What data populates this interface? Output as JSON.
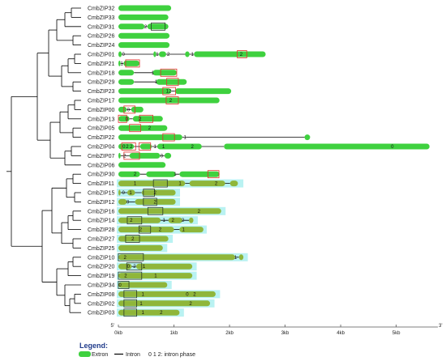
{
  "colors": {
    "exon": "#3fd13f",
    "exon_alt": "#8fb63a",
    "highlight": "#b9f2f2",
    "intron": "#000000",
    "box": "#e0302a",
    "box_alt": "#2a3a2a",
    "tree": "#000000"
  },
  "genes": [
    {
      "name": "CmbZIP32",
      "exons": [
        [
          0,
          950
        ]
      ],
      "hl": null,
      "boxes": [],
      "phases": []
    },
    {
      "name": "CmbZIP33",
      "exons": [
        [
          0,
          900
        ]
      ],
      "hl": null,
      "boxes": [],
      "phases": []
    },
    {
      "name": "CmbZIP31",
      "exons": [
        [
          0,
          470
        ],
        [
          520,
          900
        ]
      ],
      "hl": null,
      "boxes": [
        [
          590,
          840,
          "dark"
        ]
      ],
      "phases": [
        [
          490,
          "2"
        ]
      ]
    },
    {
      "name": "CmbZIP26",
      "exons": [
        [
          0,
          920
        ]
      ],
      "hl": null,
      "boxes": [],
      "phases": []
    },
    {
      "name": "CmbZIP24",
      "exons": [
        [
          0,
          920
        ]
      ],
      "hl": null,
      "boxes": [],
      "phases": []
    },
    {
      "name": "CmbZIP01",
      "exons": [
        [
          0,
          60
        ],
        [
          630,
          680
        ],
        [
          730,
          860
        ],
        [
          1200,
          1280
        ],
        [
          1360,
          2650
        ]
      ],
      "hl": null,
      "boxes": [
        [
          2140,
          2310,
          "red"
        ]
      ],
      "phases": [
        [
          90,
          "0"
        ],
        [
          700,
          "1"
        ],
        [
          900,
          "2"
        ],
        [
          1330,
          "1"
        ],
        [
          2210,
          "2"
        ]
      ]
    },
    {
      "name": "CmbZIP21",
      "exons": [
        [
          0,
          40
        ],
        [
          90,
          380
        ]
      ],
      "hl": null,
      "boxes": [
        [
          130,
          380,
          "red"
        ]
      ],
      "phases": [
        [
          60,
          "1"
        ]
      ]
    },
    {
      "name": "CmbZIP18",
      "exons": [
        [
          0,
          280
        ],
        [
          620,
          1050
        ]
      ],
      "hl": null,
      "boxes": [
        [
          760,
          1050,
          "red"
        ]
      ],
      "phases": [
        [
          620,
          "1"
        ]
      ]
    },
    {
      "name": "CmbZIP29",
      "exons": [
        [
          0,
          280
        ],
        [
          680,
          1230
        ]
      ],
      "hl": null,
      "boxes": [
        [
          870,
          1080,
          "red"
        ]
      ],
      "phases": [
        [
          680,
          "1"
        ]
      ]
    },
    {
      "name": "CmbZIP23",
      "exons": [
        [
          0,
          950
        ],
        [
          1020,
          2030
        ]
      ],
      "hl": null,
      "boxes": [
        [
          800,
          1030,
          "red"
        ]
      ],
      "phases": [
        [
          880,
          "1"
        ],
        [
          930,
          "2"
        ]
      ]
    },
    {
      "name": "CmbZIP17",
      "exons": [
        [
          0,
          1820
        ]
      ],
      "hl": null,
      "boxes": [
        [
          860,
          1080,
          "red"
        ]
      ],
      "phases": [
        [
          940,
          "2"
        ]
      ]
    },
    {
      "name": "CmbZIP00",
      "exons": [
        [
          0,
          150
        ],
        [
          230,
          450
        ]
      ],
      "hl": null,
      "boxes": [
        [
          100,
          300,
          "red"
        ]
      ],
      "phases": [
        [
          180,
          "0"
        ]
      ]
    },
    {
      "name": "CmbZIP13",
      "exons": [
        [
          0,
          200
        ],
        [
          260,
          800
        ]
      ],
      "hl": null,
      "boxes": [
        [
          0,
          150,
          "red"
        ],
        [
          380,
          620,
          "red"
        ]
      ],
      "phases": [
        [
          150,
          "0"
        ],
        [
          390,
          "2"
        ]
      ]
    },
    {
      "name": "CmbZIP05",
      "exons": [
        [
          0,
          880
        ]
      ],
      "hl": null,
      "boxes": [
        [
          200,
          400,
          "red"
        ]
      ],
      "phases": [
        [
          560,
          "2"
        ]
      ]
    },
    {
      "name": "CmbZIP22",
      "exons": [
        [
          0,
          1150
        ],
        [
          3350,
          3450
        ]
      ],
      "hl": null,
      "boxes": [
        [
          800,
          1010,
          "red"
        ]
      ],
      "phases": [
        [
          1200,
          "1"
        ]
      ]
    },
    {
      "name": "CmbZIP04",
      "exons": [
        [
          0,
          280
        ],
        [
          390,
          600
        ],
        [
          700,
          1500
        ],
        [
          1900,
          5600
        ]
      ],
      "hl": null,
      "boxes": [
        [
          60,
          310,
          "red"
        ],
        [
          370,
          580,
          "red"
        ]
      ],
      "phases": [
        [
          100,
          "0"
        ],
        [
          160,
          "2"
        ],
        [
          230,
          "2"
        ],
        [
          660,
          "1"
        ],
        [
          810,
          "1"
        ],
        [
          1330,
          "2"
        ],
        [
          4930,
          "0"
        ]
      ]
    },
    {
      "name": "CmbZIP07",
      "exons": [
        [
          0,
          40
        ],
        [
          200,
          750
        ],
        [
          830,
          950
        ]
      ],
      "hl": null,
      "boxes": [
        [
          100,
          380,
          "red"
        ]
      ],
      "phases": [
        [
          110,
          "2"
        ],
        [
          780,
          "0"
        ]
      ]
    },
    {
      "name": "CmbZIP06",
      "exons": [
        [
          0,
          850
        ]
      ],
      "hl": null,
      "boxes": [],
      "phases": []
    },
    {
      "name": "CmbZIP30",
      "exons": [
        [
          0,
          390
        ],
        [
          500,
          1030
        ],
        [
          1100,
          1820
        ]
      ],
      "hl": null,
      "boxes": [
        [
          1610,
          1810,
          "red"
        ]
      ],
      "phases": [
        [
          300,
          "2"
        ],
        [
          1020,
          "1"
        ]
      ]
    },
    {
      "name": "CmbZIP11",
      "exons": [
        [
          0,
          1200
        ],
        [
          1280,
          1920
        ],
        [
          2010,
          2150
        ]
      ],
      "hl": [
        0,
        2220
      ],
      "boxes": [
        [
          630,
          880,
          "dark"
        ]
      ],
      "phases": [
        [
          300,
          "1"
        ],
        [
          1110,
          "1"
        ],
        [
          1760,
          "2"
        ]
      ]
    },
    {
      "name": "CmbZIP15",
      "exons": [
        [
          0,
          40
        ],
        [
          160,
          300
        ],
        [
          420,
          1030
        ]
      ],
      "hl": [
        0,
        1080
      ],
      "boxes": [
        [
          450,
          650,
          "dark"
        ]
      ],
      "phases": [
        [
          90,
          "0"
        ],
        [
          220,
          "1"
        ],
        [
          660,
          "2"
        ]
      ]
    },
    {
      "name": "CmbZIP12",
      "exons": [
        [
          0,
          150
        ],
        [
          300,
          1030
        ]
      ],
      "hl": [
        0,
        1080
      ],
      "boxes": [
        [
          450,
          690,
          "dark"
        ]
      ],
      "phases": [
        [
          170,
          "0"
        ],
        [
          660,
          "2"
        ]
      ]
    },
    {
      "name": "CmbZIP16",
      "exons": [
        [
          0,
          1850
        ]
      ],
      "hl": [
        0,
        1900
      ],
      "boxes": [
        [
          530,
          800,
          "dark"
        ]
      ],
      "phases": [
        [
          1450,
          "2"
        ]
      ]
    },
    {
      "name": "CmbZIP14",
      "exons": [
        [
          0,
          760
        ],
        [
          900,
          1150
        ],
        [
          1270,
          1350
        ]
      ],
      "hl": [
        0,
        1400
      ],
      "boxes": [
        [
          160,
          420,
          "dark"
        ]
      ],
      "phases": [
        [
          230,
          "2"
        ],
        [
          820,
          "1"
        ],
        [
          980,
          "2"
        ],
        [
          1160,
          "2"
        ]
      ]
    },
    {
      "name": "CmbZIP28",
      "exons": [
        [
          0,
          1000
        ],
        [
          1100,
          1530
        ]
      ],
      "hl": [
        0,
        1560
      ],
      "boxes": [
        [
          370,
          580,
          "dark"
        ]
      ],
      "phases": [
        [
          400,
          "2"
        ],
        [
          750,
          "2"
        ],
        [
          1170,
          "1"
        ]
      ]
    },
    {
      "name": "CmbZIP27",
      "exons": [
        [
          0,
          900
        ]
      ],
      "hl": [
        0,
        950
      ],
      "boxes": [
        [
          130,
          380,
          "dark"
        ]
      ],
      "phases": [
        [
          260,
          "2"
        ]
      ]
    },
    {
      "name": "CmbZIP25",
      "exons": [
        [
          0,
          800
        ]
      ],
      "hl": [
        0,
        850
      ],
      "boxes": [],
      "phases": []
    },
    {
      "name": "CmbZIP10",
      "exons": [
        [
          0,
          2100
        ],
        [
          2170,
          2250
        ]
      ],
      "hl": [
        0,
        2300
      ],
      "boxes": [
        [
          0,
          450,
          "dark"
        ]
      ],
      "phases": [
        [
          120,
          "2"
        ],
        [
          2110,
          "1"
        ]
      ]
    },
    {
      "name": "CmbZIP20",
      "exons": [
        [
          0,
          240
        ],
        [
          320,
          1330
        ]
      ],
      "hl": [
        0,
        1380
      ],
      "boxes": [
        [
          150,
          420,
          "dark"
        ]
      ],
      "phases": [
        [
          180,
          "0"
        ],
        [
          290,
          "2"
        ],
        [
          460,
          "1"
        ]
      ]
    },
    {
      "name": "CmbZIP19",
      "exons": [
        [
          0,
          1330
        ]
      ],
      "hl": [
        0,
        1380
      ],
      "boxes": [
        [
          0,
          420,
          "dark"
        ]
      ],
      "phases": [
        [
          130,
          "2"
        ],
        [
          670,
          "1"
        ]
      ]
    },
    {
      "name": "CmbZIP34",
      "exons": [
        [
          0,
          880
        ]
      ],
      "hl": [
        0,
        930
      ],
      "boxes": [
        [
          0,
          190,
          "dark"
        ]
      ],
      "phases": [
        [
          30,
          "0"
        ]
      ]
    },
    {
      "name": "CmbZIP08",
      "exons": [
        [
          0,
          1750
        ]
      ],
      "hl": [
        0,
        1800
      ],
      "boxes": [
        [
          100,
          330,
          "dark"
        ]
      ],
      "phases": [
        [
          440,
          "1"
        ],
        [
          1240,
          "0"
        ],
        [
          1370,
          "2"
        ]
      ]
    },
    {
      "name": "CmbZIP02",
      "exons": [
        [
          0,
          1650
        ]
      ],
      "hl": [
        0,
        1700
      ],
      "boxes": [
        [
          100,
          330,
          "dark"
        ]
      ],
      "phases": [
        [
          410,
          "1"
        ],
        [
          1300,
          "2"
        ]
      ]
    },
    {
      "name": "CmbZIP03",
      "exons": [
        [
          0,
          1100
        ]
      ],
      "hl": [
        0,
        1150
      ],
      "boxes": [
        [
          100,
          330,
          "dark"
        ]
      ],
      "phases": [
        [
          440,
          "1"
        ],
        [
          770,
          "2"
        ]
      ]
    }
  ],
  "axis": {
    "ticks": [
      {
        "v": 0,
        "label": "0kb"
      },
      {
        "v": 1000,
        "label": "1kb"
      },
      {
        "v": 2000,
        "label": "2kb"
      },
      {
        "v": 3000,
        "label": "3kb"
      },
      {
        "v": 4000,
        "label": "4kb"
      },
      {
        "v": 5000,
        "label": "5kb"
      }
    ],
    "max": 5750,
    "left_end": "5'",
    "right_end": "3'"
  },
  "legend": {
    "title": "Legend:",
    "exon": "Extron",
    "intron": "Intron",
    "phase": "0 1 2: intron phase"
  }
}
